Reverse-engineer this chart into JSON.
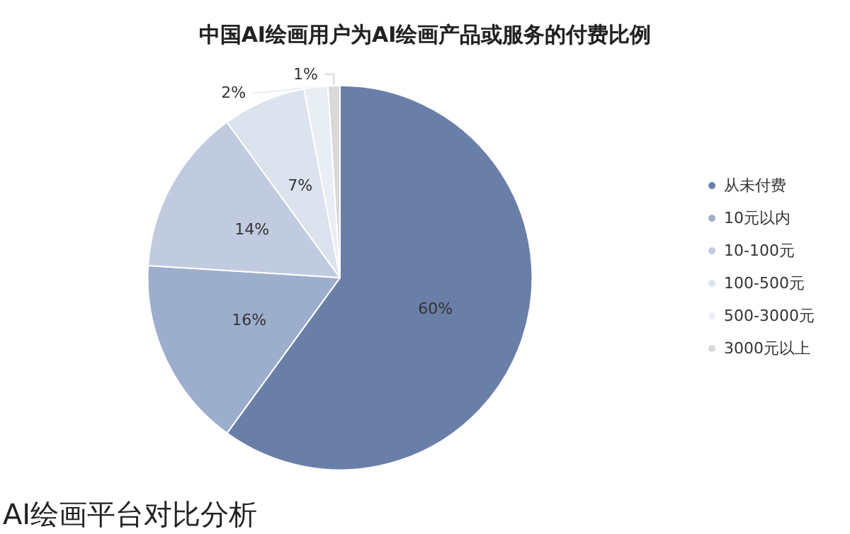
{
  "chart_data": {
    "type": "pie",
    "title": "中国AI绘画用户为AI绘画产品或服务的付费比例",
    "categories": [
      "从未付费",
      "10元以内",
      "10-100元",
      "100-500元",
      "500-3000元",
      "3000元以上"
    ],
    "values": [
      60,
      16,
      14,
      7,
      2,
      1
    ],
    "value_labels": [
      "60%",
      "16%",
      "14%",
      "7%",
      "2%",
      "1%"
    ],
    "colors": [
      "#6a7fa8",
      "#9dadcc",
      "#c1cbe0",
      "#dce2ee",
      "#e9edf4",
      "#d9d9d9"
    ],
    "legend": "right",
    "annotations": [
      "AI绘画平台对比分析"
    ]
  }
}
